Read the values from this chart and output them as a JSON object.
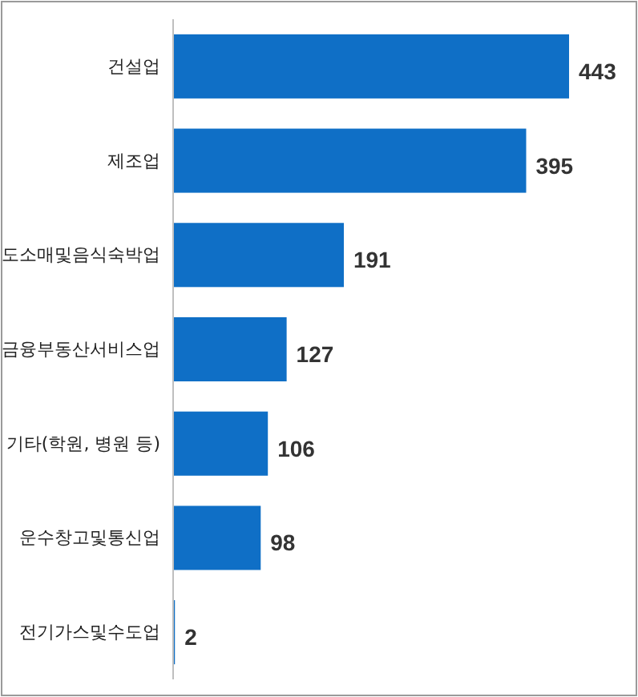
{
  "chart_data": {
    "type": "bar",
    "orientation": "horizontal",
    "categories": [
      "건설업",
      "제조업",
      "도소매및음식숙박업",
      "금융부동산서비스업",
      "기타(학원, 병원 등)",
      "운수창고및통신업",
      "전기가스및수도업"
    ],
    "values": [
      443,
      395,
      191,
      127,
      106,
      98,
      2
    ],
    "color": "#0f6fc6",
    "data_labels": true
  }
}
